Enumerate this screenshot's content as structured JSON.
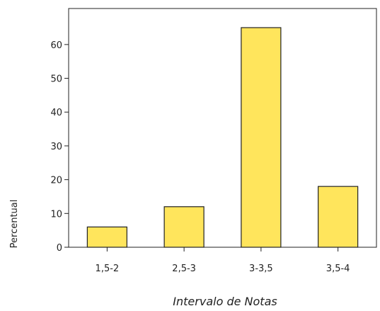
{
  "chart_data": {
    "type": "bar",
    "categories": [
      "1,5-2",
      "2,5-3",
      "3-3,5",
      "3,5-4"
    ],
    "values": [
      6,
      12,
      65,
      18
    ],
    "xlabel": "Intervalo de Notas",
    "ylabel": "Percentual",
    "ylim": [
      0,
      70
    ],
    "yticks": [
      0,
      10,
      20,
      30,
      40,
      50,
      60
    ],
    "grid": false,
    "legend": "none",
    "colors": {
      "bar": "#FFE55C",
      "bar_stroke": "#222222",
      "axis": "#222222"
    }
  }
}
